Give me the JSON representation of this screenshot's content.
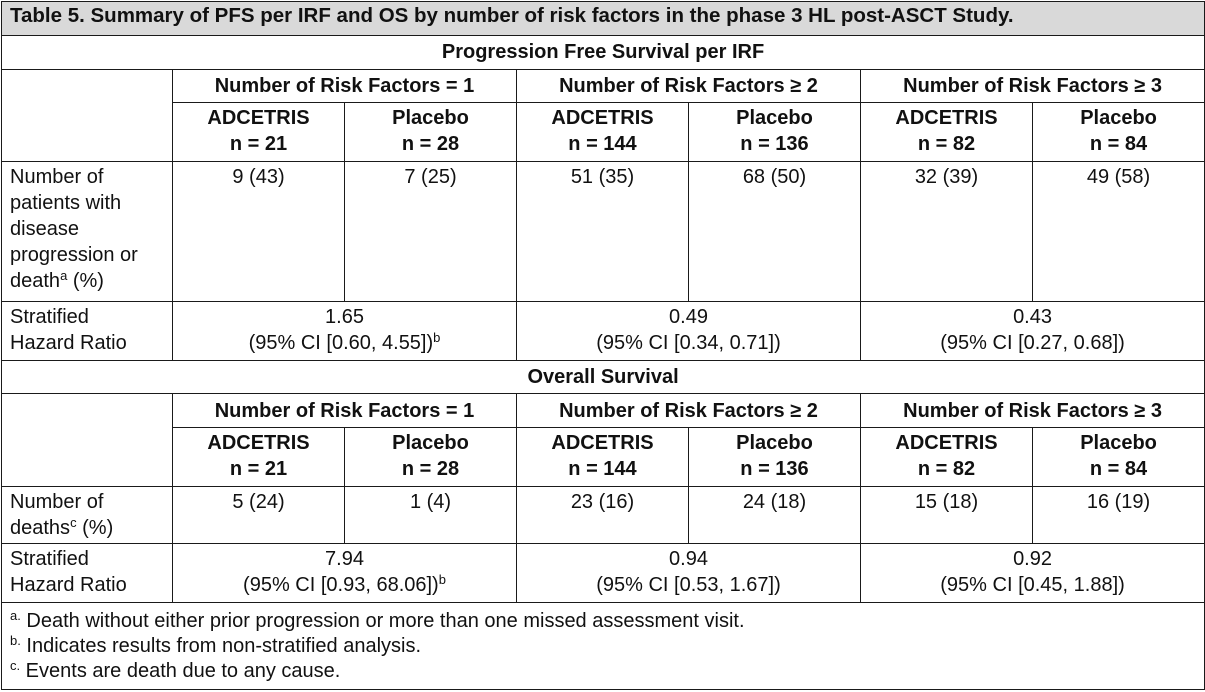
{
  "title": "Table 5. Summary of PFS per IRF and OS by number of risk factors in the phase 3 HL post-ASCT Study.",
  "groups": [
    "Number of Risk Factors = 1",
    "Number of Risk Factors ≥ 2",
    "Number of Risk Factors ≥ 3"
  ],
  "arms": [
    {
      "name": "ADCETRIS",
      "n": "n = 21"
    },
    {
      "name": "Placebo",
      "n": "n = 28"
    },
    {
      "name": "ADCETRIS",
      "n": "n = 144"
    },
    {
      "name": "Placebo",
      "n": "n = 136"
    },
    {
      "name": "ADCETRIS",
      "n": "n = 82"
    },
    {
      "name": "Placebo",
      "n": "n = 84"
    }
  ],
  "pfs": {
    "section_title": "Progression Free Survival per IRF",
    "events_label_lines": [
      "Number of",
      "patients with",
      "disease",
      "progression or",
      "death"
    ],
    "events_label_sup": "a",
    "events_label_tail": " (%)",
    "events": [
      "9 (43)",
      "7 (25)",
      "51 (35)",
      "68 (50)",
      "32 (39)",
      "49 (58)"
    ],
    "hr_label": [
      "Stratified",
      "Hazard Ratio"
    ],
    "hr": [
      {
        "value": "1.65",
        "ci": "(95% CI [0.60, 4.55])",
        "sup": "b"
      },
      {
        "value": "0.49",
        "ci": "(95% CI [0.34, 0.71])",
        "sup": ""
      },
      {
        "value": "0.43",
        "ci": "(95% CI [0.27, 0.68])",
        "sup": ""
      }
    ]
  },
  "os": {
    "section_title": "Overall Survival",
    "events_label_lines": [
      "Number of",
      "deaths"
    ],
    "events_label_sup": "c",
    "events_label_tail": " (%)",
    "events": [
      "5 (24)",
      "1 (4)",
      "23 (16)",
      "24 (18)",
      "15 (18)",
      "16 (19)"
    ],
    "hr_label": [
      "Stratified",
      "Hazard Ratio"
    ],
    "hr": [
      {
        "value": "7.94",
        "ci": "(95% CI [0.93, 68.06])",
        "sup": "b"
      },
      {
        "value": "0.94",
        "ci": "(95% CI [0.53, 1.67])",
        "sup": ""
      },
      {
        "value": "0.92",
        "ci": "(95% CI [0.45, 1.88])",
        "sup": ""
      }
    ]
  },
  "footnotes": [
    {
      "mark": "a.",
      "text": " Death without either prior progression or more than one missed assessment visit."
    },
    {
      "mark": "b.",
      "text": " Indicates results from non-stratified analysis."
    },
    {
      "mark": "c.",
      "text": " Events are death due to any cause."
    }
  ]
}
